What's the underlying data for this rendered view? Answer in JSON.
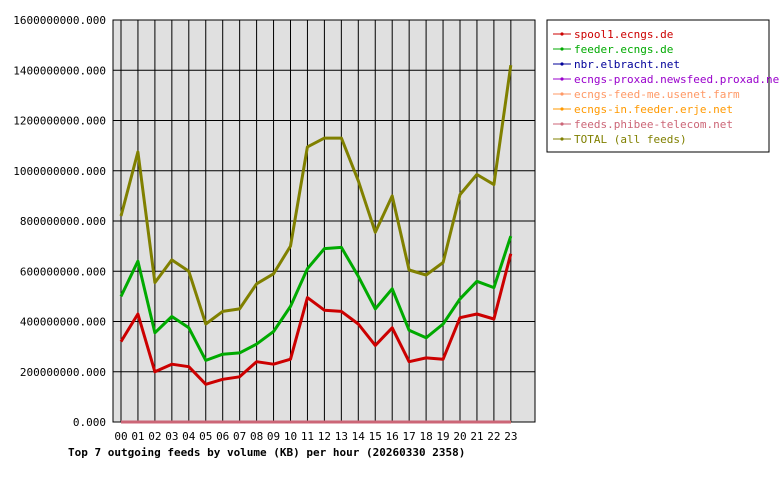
{
  "chart_data": {
    "type": "line",
    "title": "Top 7 outgoing feeds by volume (KB) per hour (20260330 2358)",
    "xlabel": "",
    "ylabel": "",
    "ylim": [
      0,
      1600000000
    ],
    "yticks": [
      "0.000",
      "200000000.000",
      "400000000.000",
      "600000000.000",
      "800000000.000",
      "1000000000.000",
      "1200000000.000",
      "1400000000.000",
      "1600000000.000"
    ],
    "categories": [
      "00",
      "01",
      "02",
      "03",
      "04",
      "05",
      "06",
      "07",
      "08",
      "09",
      "10",
      "11",
      "12",
      "13",
      "14",
      "15",
      "16",
      "17",
      "18",
      "19",
      "20",
      "21",
      "22",
      "23"
    ],
    "grid": true,
    "legend_placement": "right",
    "series": [
      {
        "name": "spool1.ecngs.de",
        "color": "#cc0000",
        "values": [
          320000000,
          430000000,
          200000000,
          230000000,
          220000000,
          150000000,
          170000000,
          180000000,
          240000000,
          230000000,
          250000000,
          495000000,
          445000000,
          440000000,
          390000000,
          305000000,
          375000000,
          240000000,
          255000000,
          250000000,
          415000000,
          430000000,
          410000000,
          670000000
        ]
      },
      {
        "name": "feeder.ecngs.de",
        "color": "#00aa00",
        "values": [
          500000000,
          640000000,
          355000000,
          420000000,
          375000000,
          245000000,
          270000000,
          275000000,
          310000000,
          360000000,
          460000000,
          610000000,
          690000000,
          695000000,
          580000000,
          450000000,
          530000000,
          365000000,
          335000000,
          390000000,
          490000000,
          560000000,
          535000000,
          740000000
        ]
      },
      {
        "name": "nbr.elbracht.net",
        "color": "#000099",
        "values": [
          0,
          0,
          0,
          0,
          0,
          0,
          0,
          0,
          0,
          0,
          0,
          0,
          0,
          0,
          0,
          0,
          0,
          0,
          0,
          0,
          0,
          0,
          0,
          0
        ]
      },
      {
        "name": "ecngs-proxad.newsfeed.proxad.net",
        "color": "#9900cc",
        "values": [
          0,
          0,
          0,
          0,
          0,
          0,
          0,
          0,
          0,
          0,
          0,
          0,
          0,
          0,
          0,
          0,
          0,
          0,
          0,
          0,
          0,
          0,
          0,
          0
        ]
      },
      {
        "name": "ecngs-feed-me.usenet.farm",
        "color": "#ff9966",
        "values": [
          0,
          0,
          0,
          0,
          0,
          0,
          0,
          0,
          0,
          0,
          0,
          0,
          0,
          0,
          0,
          0,
          0,
          0,
          0,
          0,
          0,
          0,
          0,
          0
        ]
      },
      {
        "name": "ecngs-in.feeder.erje.net",
        "color": "#ff9900",
        "values": [
          0,
          0,
          0,
          0,
          0,
          0,
          0,
          0,
          0,
          0,
          0,
          0,
          0,
          0,
          0,
          0,
          0,
          0,
          0,
          0,
          0,
          0,
          0,
          0
        ]
      },
      {
        "name": "feeds.phibee-telecom.net",
        "color": "#cc6677",
        "values": [
          0,
          0,
          0,
          0,
          0,
          0,
          0,
          0,
          0,
          0,
          0,
          0,
          0,
          0,
          0,
          0,
          0,
          0,
          0,
          0,
          0,
          0,
          0,
          0
        ]
      },
      {
        "name": "TOTAL (all feeds)",
        "color": "#808000",
        "values": [
          820000000,
          1075000000,
          555000000,
          645000000,
          600000000,
          390000000,
          440000000,
          450000000,
          550000000,
          590000000,
          700000000,
          1095000000,
          1130000000,
          1130000000,
          960000000,
          755000000,
          900000000,
          605000000,
          585000000,
          635000000,
          905000000,
          985000000,
          945000000,
          1420000000
        ]
      }
    ]
  }
}
